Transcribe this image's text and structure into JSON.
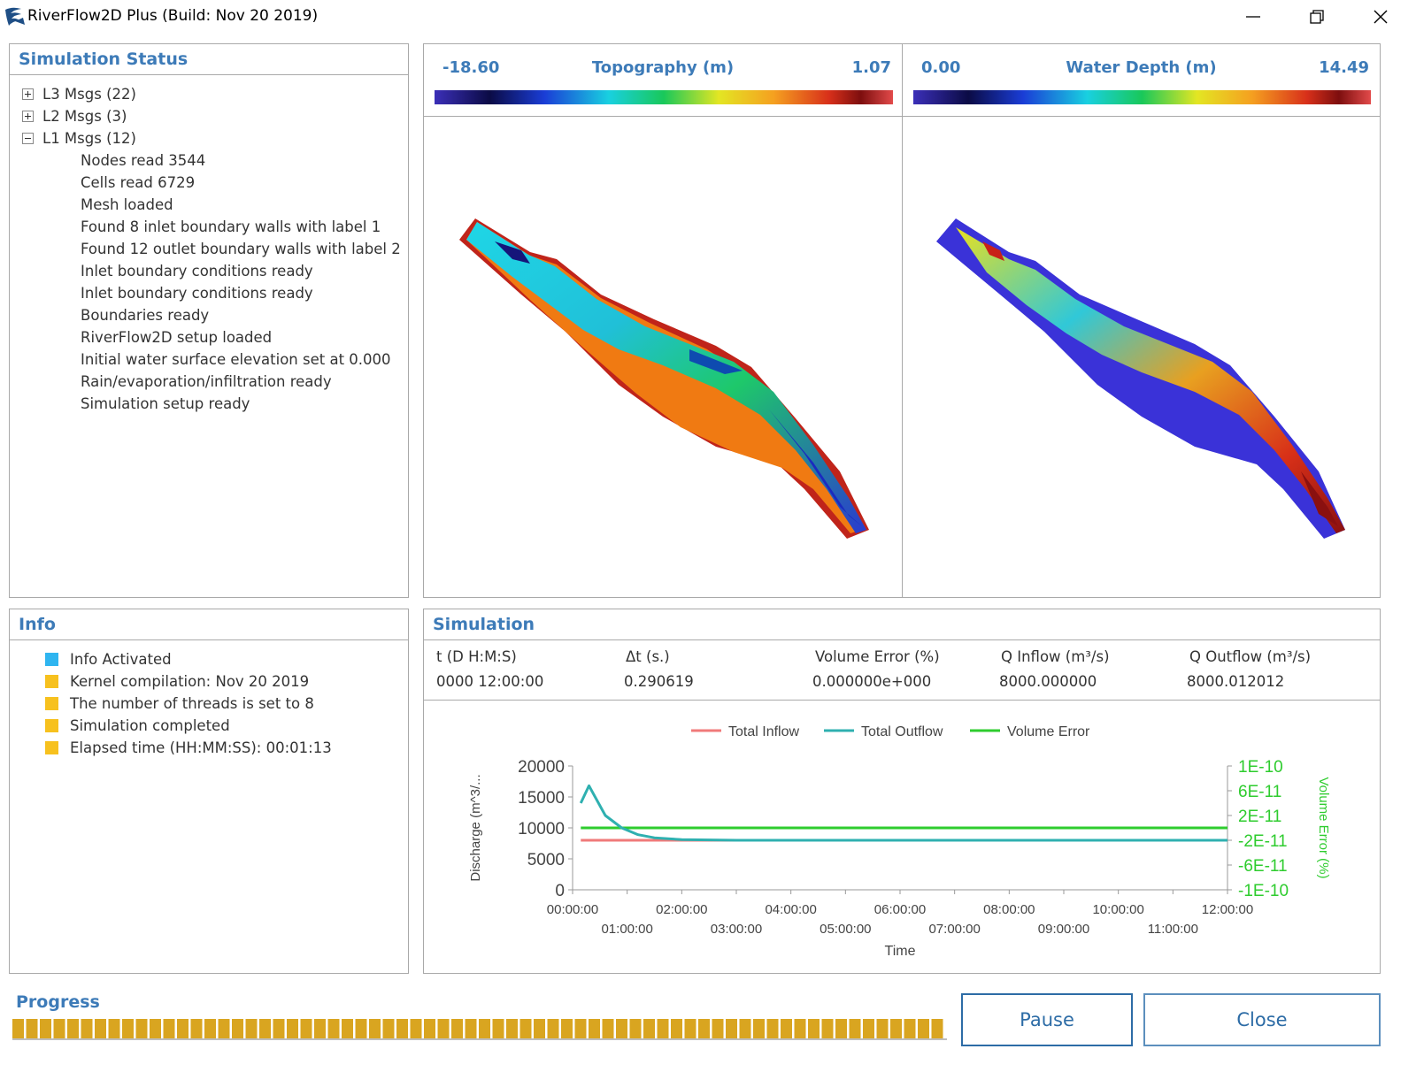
{
  "window": {
    "title": "RiverFlow2D Plus (Build: Nov 20 2019)"
  },
  "simulation_status": {
    "title": "Simulation Status",
    "nodes": [
      {
        "label": "L3 Msgs (22)",
        "expanded": false
      },
      {
        "label": "L2 Msgs (3)",
        "expanded": false
      },
      {
        "label": "L1 Msgs (12)",
        "expanded": true
      }
    ],
    "l1_messages": [
      "Nodes read 3544",
      "Cells read 6729",
      "Mesh loaded",
      "Found 8 inlet boundary walls with label 1",
      "Found 12 outlet boundary walls with label 2",
      "Inlet boundary conditions ready",
      "Inlet boundary conditions ready",
      "Boundaries ready",
      "RiverFlow2D setup loaded",
      "Initial water surface elevation set at 0.000",
      "Rain/evaporation/infiltration ready",
      "Simulation setup ready"
    ]
  },
  "topography": {
    "title": "Topography (m)",
    "min": "-18.60",
    "max": "1.07"
  },
  "water_depth": {
    "title": "Water Depth (m)",
    "min": "0.00",
    "max": "14.49"
  },
  "info": {
    "title": "Info",
    "items": [
      {
        "text": "Info Activated",
        "color": "#2fb5f0"
      },
      {
        "text": "Kernel compilation: Nov 20 2019",
        "color": "#f7c11e"
      },
      {
        "text": "The number of threads is set to 8",
        "color": "#f7c11e"
      },
      {
        "text": "Simulation completed",
        "color": "#f7c11e"
      },
      {
        "text": "Elapsed time (HH:MM:SS): 00:01:13",
        "color": "#f7c11e"
      }
    ]
  },
  "simulation": {
    "title": "Simulation",
    "columns": [
      {
        "header": "t (D H:M:S)",
        "value": "0000 12:00:00"
      },
      {
        "header": "Δt (s.)",
        "value": "0.290619"
      },
      {
        "header": "Volume Error (%)",
        "value": "0.000000e+000"
      },
      {
        "header": "Q Inflow (m³/s)",
        "value": "8000.000000"
      },
      {
        "header": "Q Outflow (m³/s)",
        "value": "8000.012012"
      }
    ]
  },
  "chart_data": {
    "type": "line",
    "xlabel": "Time",
    "ylabel": "Discharge (m^3/...",
    "y2label": "Volume Error (%)",
    "legend_placement": "top-center",
    "grid": false,
    "x_ticks": [
      "00:00:00",
      "01:00:00",
      "02:00:00",
      "03:00:00",
      "04:00:00",
      "05:00:00",
      "06:00:00",
      "07:00:00",
      "08:00:00",
      "09:00:00",
      "10:00:00",
      "11:00:00",
      "12:00:00"
    ],
    "xlim_hours": [
      0,
      12
    ],
    "ylim": [
      0,
      20000
    ],
    "y_ticks": [
      "20000",
      "15000",
      "10000",
      "5000",
      "0"
    ],
    "y2lim": [
      -1e-10,
      1e-10
    ],
    "y2_ticks": [
      "1E-10",
      "6E-11",
      "2E-11",
      "-2E-11",
      "-6E-11",
      "-1E-10"
    ],
    "colors": {
      "inflow": "#f07a7a",
      "outflow": "#2fb0b0",
      "volume_error": "#2ecc2e"
    },
    "series": [
      {
        "name": "Total Inflow",
        "x_hours": [
          0.15,
          12
        ],
        "values": [
          8000,
          8000
        ]
      },
      {
        "name": "Total Outflow",
        "x_hours": [
          0.15,
          0.3,
          0.6,
          0.9,
          1.2,
          1.5,
          2.0,
          3.0,
          12
        ],
        "values": [
          14000,
          16800,
          12000,
          10000,
          8900,
          8400,
          8100,
          8000,
          8000
        ]
      },
      {
        "name": "Volume Error",
        "axis": "y2",
        "x_hours": [
          0.15,
          12
        ],
        "values": [
          0,
          0
        ]
      }
    ]
  },
  "progress": {
    "label": "Progress",
    "fraction": 1.0
  },
  "buttons": {
    "pause": "Pause",
    "close": "Close"
  }
}
